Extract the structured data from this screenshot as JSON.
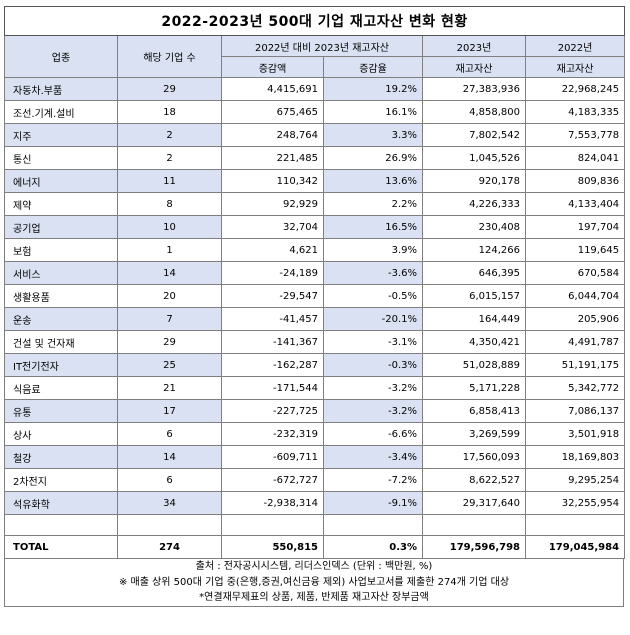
{
  "title": "2022-2023년 500대 기업 재고자산 변화 현황",
  "headers": {
    "industry": "업종",
    "count": "해당 기업 수",
    "change_group": "2022년 대비 2023년 재고자산",
    "col_2023": "2023년",
    "col_2022": "2022년",
    "amount": "증감액",
    "rate": "증감율",
    "inv_2023": "재고자산",
    "inv_2022": "재고자산"
  },
  "rows": [
    {
      "industry": "자동차.부품",
      "count": "29",
      "change": "4,415,691",
      "rate": "19.2%",
      "inv2023": "27,383,936",
      "inv2022": "22,968,245"
    },
    {
      "industry": "조선.기계.설비",
      "count": "18",
      "change": "675,465",
      "rate": "16.1%",
      "inv2023": "4,858,800",
      "inv2022": "4,183,335"
    },
    {
      "industry": "지주",
      "count": "2",
      "change": "248,764",
      "rate": "3.3%",
      "inv2023": "7,802,542",
      "inv2022": "7,553,778"
    },
    {
      "industry": "통신",
      "count": "2",
      "change": "221,485",
      "rate": "26.9%",
      "inv2023": "1,045,526",
      "inv2022": "824,041"
    },
    {
      "industry": "에너지",
      "count": "11",
      "change": "110,342",
      "rate": "13.6%",
      "inv2023": "920,178",
      "inv2022": "809,836"
    },
    {
      "industry": "제약",
      "count": "8",
      "change": "92,929",
      "rate": "2.2%",
      "inv2023": "4,226,333",
      "inv2022": "4,133,404"
    },
    {
      "industry": "공기업",
      "count": "10",
      "change": "32,704",
      "rate": "16.5%",
      "inv2023": "230,408",
      "inv2022": "197,704"
    },
    {
      "industry": "보험",
      "count": "1",
      "change": "4,621",
      "rate": "3.9%",
      "inv2023": "124,266",
      "inv2022": "119,645"
    },
    {
      "industry": "서비스",
      "count": "14",
      "change": "-24,189",
      "rate": "-3.6%",
      "inv2023": "646,395",
      "inv2022": "670,584"
    },
    {
      "industry": "생활용품",
      "count": "20",
      "change": "-29,547",
      "rate": "-0.5%",
      "inv2023": "6,015,157",
      "inv2022": "6,044,704"
    },
    {
      "industry": "운송",
      "count": "7",
      "change": "-41,457",
      "rate": "-20.1%",
      "inv2023": "164,449",
      "inv2022": "205,906"
    },
    {
      "industry": "건설 및 건자재",
      "count": "29",
      "change": "-141,367",
      "rate": "-3.1%",
      "inv2023": "4,350,421",
      "inv2022": "4,491,787"
    },
    {
      "industry": "IT전기전자",
      "count": "25",
      "change": "-162,287",
      "rate": "-0.3%",
      "inv2023": "51,028,889",
      "inv2022": "51,191,175"
    },
    {
      "industry": "식음료",
      "count": "21",
      "change": "-171,544",
      "rate": "-3.2%",
      "inv2023": "5,171,228",
      "inv2022": "5,342,772"
    },
    {
      "industry": "유통",
      "count": "17",
      "change": "-227,725",
      "rate": "-3.2%",
      "inv2023": "6,858,413",
      "inv2022": "7,086,137"
    },
    {
      "industry": "상사",
      "count": "6",
      "change": "-232,319",
      "rate": "-6.6%",
      "inv2023": "3,269,599",
      "inv2022": "3,501,918"
    },
    {
      "industry": "철강",
      "count": "14",
      "change": "-609,711",
      "rate": "-3.4%",
      "inv2023": "17,560,093",
      "inv2022": "18,169,803"
    },
    {
      "industry": "2차전지",
      "count": "6",
      "change": "-672,727",
      "rate": "-7.2%",
      "inv2023": "8,622,527",
      "inv2022": "9,295,254"
    },
    {
      "industry": "석유화학",
      "count": "34",
      "change": "-2,938,314",
      "rate": "-9.1%",
      "inv2023": "29,317,640",
      "inv2022": "32,255,954"
    }
  ],
  "total": {
    "industry": "TOTAL",
    "count": "274",
    "change": "550,815",
    "rate": "0.3%",
    "inv2023": "179,596,798",
    "inv2022": "179,045,984"
  },
  "notes": [
    "출처 : 전자공시시스템, 리더스인덱스 (단위 : 백만원, %)",
    "※ 매출 상위 500대 기업 중(은행,증권,여신금융 제외) 사업보고서를 제출한 274개 기업 대상",
    "*연결재무제표의 상품, 제품, 반제품 재고자산 장부금액"
  ],
  "colors": {
    "header_fill": "#d9e1f2",
    "border": "#7f7f7f"
  }
}
